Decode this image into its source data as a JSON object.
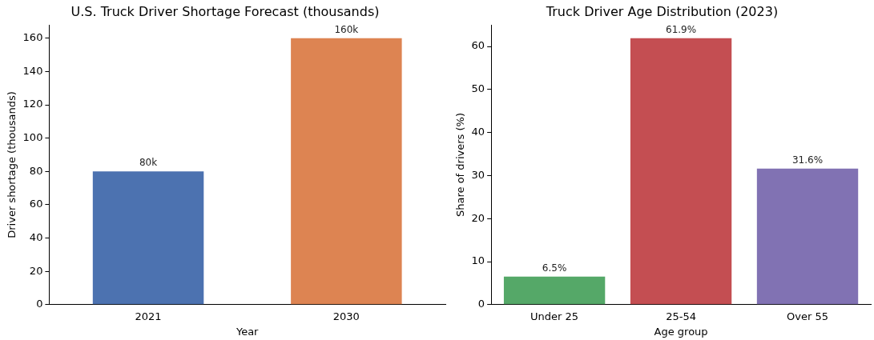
{
  "chart_data": [
    {
      "type": "bar",
      "title": "U.S. Truck Driver Shortage Forecast (thousands)",
      "xlabel": "Year",
      "ylabel": "Driver shortage (thousands)",
      "categories": [
        "2021",
        "2030"
      ],
      "series": [
        {
          "color": "#4c72b0",
          "values": [
            80,
            null
          ],
          "value_labels": [
            "80k",
            null
          ]
        },
        {
          "color": "#dd8452",
          "values": [
            null,
            160
          ],
          "value_labels": [
            null,
            "160k"
          ]
        }
      ],
      "ylim": [
        0,
        168
      ],
      "yticks": [
        0,
        20,
        40,
        60,
        80,
        100,
        120,
        140,
        160
      ],
      "grid": false,
      "legend": false,
      "stacked": true
    },
    {
      "type": "bar",
      "title": "Truck Driver Age Distribution (2023)",
      "xlabel": "Age group",
      "ylabel": "Share of drivers (%)",
      "categories": [
        "Under 25",
        "25-54",
        "Over 55"
      ],
      "values": [
        6.5,
        61.9,
        31.6
      ],
      "colors": [
        "#55a868",
        "#c44e52",
        "#8172b3"
      ],
      "value_labels": [
        "6.5%",
        "61.9%",
        "31.6%"
      ],
      "ylim": [
        0,
        65
      ],
      "yticks": [
        0,
        10,
        20,
        30,
        40,
        50,
        60
      ],
      "grid": false,
      "legend": false
    }
  ]
}
